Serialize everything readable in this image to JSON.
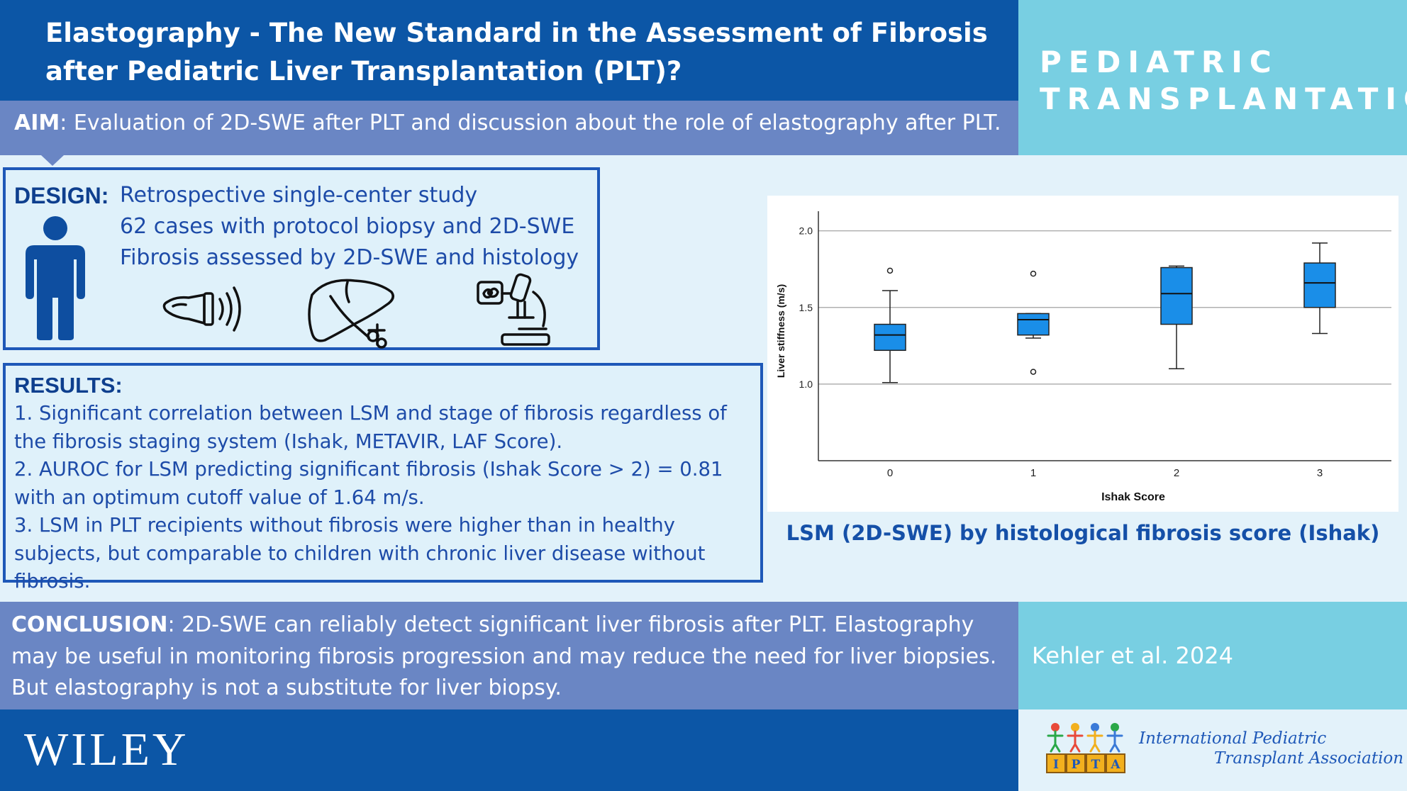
{
  "title": "Elastography - The New Standard in the Assessment of Fibrosis after Pediatric Liver Transplantation (PLT)?",
  "journal": {
    "line1": "PEDIATRIC",
    "line2": "TRANSPLANTATION"
  },
  "aim": {
    "label": "AIM",
    "text": ": Evaluation of 2D-SWE after PLT and discussion about the role of elastography after PLT."
  },
  "design": {
    "label": "DESIGN:",
    "lines": [
      "Retrospective single-center study",
      "62 cases with protocol biopsy and 2D-SWE",
      "Fibrosis assessed by 2D-SWE and histology"
    ],
    "icons": [
      "person-icon",
      "ultrasound-probe-icon",
      "liver-biopsy-icon",
      "microscope-icon"
    ]
  },
  "results": {
    "label": "RESULTS:",
    "items": [
      "1. Significant correlation between LSM and stage of fibrosis regardless of the fibrosis staging system (Ishak, METAVIR, LAF Score).",
      "2. AUROC for LSM predicting significant fibrosis (Ishak Score > 2) = 0.81 with an optimum cutoff value of 1.64 m/s.",
      "3. LSM in PLT recipients without fibrosis were higher than in healthy subjects, but comparable to children with chronic liver disease without fibrosis."
    ]
  },
  "chart_caption": "LSM (2D-SWE) by histological fibrosis score (Ishak)",
  "chart_data": {
    "type": "box",
    "title": "",
    "xlabel": "Ishak Score",
    "ylabel": "Liver stiffness (m/s)",
    "categories": [
      "0",
      "1",
      "2",
      "3"
    ],
    "yticks": [
      "1.0",
      "1.5",
      "2.0"
    ],
    "ylim": [
      0.5,
      2.1
    ],
    "grid": true,
    "box_color": "#1a8ee8",
    "boxes": [
      {
        "category": "0",
        "whisker_low": 1.01,
        "q1": 1.22,
        "median": 1.32,
        "q3": 1.39,
        "whisker_high": 1.61,
        "outliers": [
          1.74
        ]
      },
      {
        "category": "1",
        "whisker_low": 1.3,
        "q1": 1.32,
        "median": 1.42,
        "q3": 1.46,
        "whisker_high": 1.46,
        "outliers": [
          1.72,
          1.08
        ]
      },
      {
        "category": "2",
        "whisker_low": 1.1,
        "q1": 1.39,
        "median": 1.59,
        "q3": 1.76,
        "whisker_high": 1.77,
        "outliers": []
      },
      {
        "category": "3",
        "whisker_low": 1.33,
        "q1": 1.5,
        "median": 1.66,
        "q3": 1.79,
        "whisker_high": 1.92,
        "outliers": []
      }
    ]
  },
  "conclusion": {
    "label": "CONCLUSION",
    "text": ": 2D-SWE can reliably detect significant liver fibrosis after PLT. Elastography may be useful in monitoring fibrosis progression and may reduce the need for liver biopsies. But elastography is not a substitute for liver biopsy."
  },
  "citation": "Kehler et al. 2024",
  "publisher": "WILEY",
  "association": {
    "line1": "International Pediatric",
    "line2": "Transplant Association",
    "blocks": [
      "I",
      "P",
      "T",
      "A"
    ]
  }
}
